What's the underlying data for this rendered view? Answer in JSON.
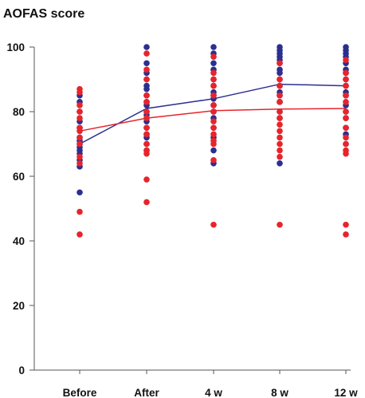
{
  "chart_data": {
    "type": "scatter",
    "title": "AOFAS score",
    "xlabel": "",
    "ylabel": "",
    "categories": [
      "Before",
      "After",
      "4 w",
      "8 w",
      "12 w"
    ],
    "ylim": [
      0,
      100
    ],
    "yticks": [
      0,
      20,
      40,
      60,
      80,
      100
    ],
    "grid": false,
    "series": [
      {
        "color": "#2b2f8f",
        "points": [
          [
            [
              85,
              83,
              80,
              77,
              75,
              72,
              71,
              70,
              69,
              68,
              67,
              65,
              63,
              55
            ],
            [
              100,
              95,
              92,
              90,
              88,
              87,
              85,
              83,
              82,
              80,
              79,
              78,
              77,
              75,
              73,
              72,
              70,
              68
            ],
            [
              100,
              98,
              95,
              93,
              90,
              88,
              86,
              85,
              84,
              82,
              80,
              78,
              75,
              72,
              68,
              64
            ],
            [
              100,
              99,
              98,
              97,
              96,
              95,
              93,
              92,
              90,
              88,
              86,
              85,
              83,
              80,
              78,
              64
            ],
            [
              100,
              99,
              98,
              97,
              95,
              93,
              92,
              90,
              88,
              86,
              85,
              82,
              80,
              78,
              75,
              73,
              70
            ]
          ]
        ],
        "mean": [
          70,
          81,
          84,
          88.5,
          88
        ]
      },
      {
        "color": "#e8242b",
        "points": [
          [
            [
              87,
              86,
              82,
              80,
              78,
              75,
              74,
              72,
              70,
              66,
              64,
              49,
              42
            ]
          ],
          [
            [
              98,
              93,
              90,
              85,
              83,
              80,
              78,
              75,
              73,
              70,
              68,
              67,
              59,
              52
            ]
          ],
          [
            [
              97,
              92,
              90,
              88,
              85,
              82,
              80,
              77,
              75,
              73,
              71,
              70,
              65,
              45
            ]
          ],
          [
            [
              95,
              90,
              88,
              85,
              83,
              80,
              78,
              76,
              74,
              72,
              70,
              68,
              66,
              45
            ]
          ],
          [
            [
              96,
              92,
              90,
              88,
              85,
              83,
              80,
              78,
              75,
              72,
              70,
              68,
              67,
              45,
              42
            ]
          ]
        ],
        "mean": [
          74,
          78,
          80.3,
          80.8,
          81
        ]
      }
    ]
  }
}
